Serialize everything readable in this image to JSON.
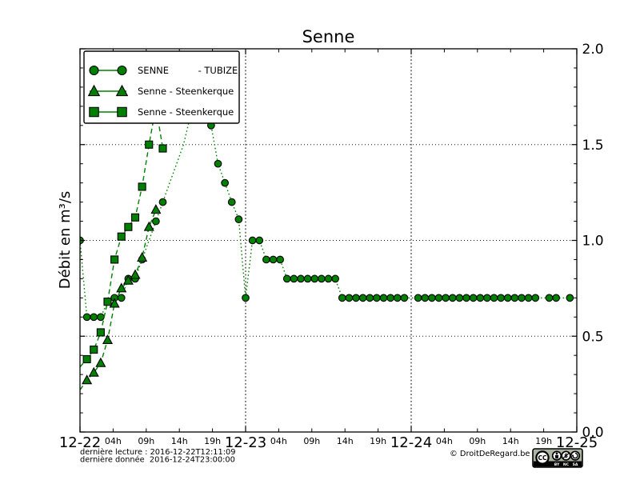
{
  "title": "Senne",
  "axes": {
    "ylabel": "Débit en m³/s",
    "y_range": [
      0.0,
      2.0
    ],
    "y_ticks": {
      "values": [
        0.0,
        0.5,
        1.0,
        1.5,
        2.0
      ],
      "labels": [
        "0.0",
        "0.5",
        "1.0",
        "1.5",
        "2.0"
      ],
      "minor_step": 0.1,
      "labels_side": "right"
    },
    "x_range_hours": [
      0,
      72
    ],
    "x_ticks": {
      "day_labels": [
        "12-22",
        "12-23",
        "12-24",
        "12-25"
      ],
      "hour_labels": [
        "04h",
        "09h",
        "14h",
        "19h"
      ],
      "hour_fractions_of_day": [
        0.2,
        0.4,
        0.6,
        0.8
      ]
    },
    "grid": {
      "horizontal_values": [
        0.5,
        1.0,
        1.5
      ],
      "vertical_hours": [
        24,
        48
      ]
    }
  },
  "legend": {
    "entries": [
      {
        "label": "SENNE          - TUBIZE",
        "marker": "circle",
        "linestyle": "dotted"
      },
      {
        "label": "Senne - Steenkerque",
        "marker": "triangle",
        "linestyle": "dashed"
      },
      {
        "label": "Senne - Steenkerque",
        "marker": "square",
        "linestyle": "dashed"
      }
    ]
  },
  "chart_data": {
    "type": "line",
    "title": "Senne",
    "xlabel": "",
    "ylabel": "Débit en m³/s",
    "x_unit": "hours since 2016-12-22 00:00",
    "xlim_hours": [
      0,
      72
    ],
    "ylim": [
      0.0,
      2.0
    ],
    "grid": true,
    "legend_position": "upper left",
    "series": [
      {
        "name": "SENNE          - TUBIZE",
        "marker": "circle",
        "linestyle": "dotted",
        "color": "#008000",
        "points": [
          [
            0,
            1.0,
            1
          ],
          [
            1,
            0.6,
            1
          ],
          [
            2,
            0.6,
            1
          ],
          [
            3,
            0.6,
            1
          ],
          [
            4,
            0.68,
            1
          ],
          [
            5,
            0.7,
            1
          ],
          [
            6,
            0.7,
            1
          ],
          [
            7,
            0.8,
            1
          ],
          [
            8,
            0.8,
            1
          ],
          [
            9,
            0.9,
            1
          ],
          [
            10,
            1.0,
            0
          ],
          [
            11,
            1.1,
            1
          ],
          [
            12,
            1.2,
            1
          ],
          [
            13,
            1.3,
            0
          ],
          [
            14,
            1.4,
            0
          ],
          [
            15,
            1.5,
            0
          ],
          [
            16,
            1.65,
            0
          ],
          [
            17,
            1.74,
            0
          ],
          [
            18,
            1.7,
            0
          ],
          [
            19,
            1.6,
            1
          ],
          [
            20,
            1.4,
            1
          ],
          [
            21,
            1.3,
            1
          ],
          [
            22,
            1.2,
            1
          ],
          [
            23,
            1.11,
            1
          ],
          [
            24,
            0.7,
            1
          ],
          [
            25,
            1.0,
            1
          ],
          [
            26,
            1.0,
            1
          ],
          [
            27,
            0.9,
            1
          ],
          [
            28,
            0.9,
            1
          ],
          [
            29,
            0.9,
            1
          ],
          [
            30,
            0.8,
            1
          ],
          [
            31,
            0.8,
            1
          ],
          [
            32,
            0.8,
            1
          ],
          [
            33,
            0.8,
            1
          ],
          [
            34,
            0.8,
            1
          ],
          [
            35,
            0.8,
            1
          ],
          [
            36,
            0.8,
            1
          ],
          [
            37,
            0.8,
            1
          ],
          [
            38,
            0.7,
            1
          ],
          [
            39,
            0.7,
            1
          ],
          [
            40,
            0.7,
            1
          ],
          [
            41,
            0.7,
            1
          ],
          [
            42,
            0.7,
            1
          ],
          [
            43,
            0.7,
            1
          ],
          [
            44,
            0.7,
            1
          ],
          [
            45,
            0.7,
            1
          ],
          [
            46,
            0.7,
            1
          ],
          [
            47,
            0.7,
            1
          ],
          [
            48,
            0.7,
            0
          ],
          [
            49,
            0.7,
            1
          ],
          [
            50,
            0.7,
            1
          ],
          [
            51,
            0.7,
            1
          ],
          [
            52,
            0.7,
            1
          ],
          [
            53,
            0.7,
            1
          ],
          [
            54,
            0.7,
            1
          ],
          [
            55,
            0.7,
            1
          ],
          [
            56,
            0.7,
            1
          ],
          [
            57,
            0.7,
            1
          ],
          [
            58,
            0.7,
            1
          ],
          [
            59,
            0.7,
            1
          ],
          [
            60,
            0.7,
            1
          ],
          [
            61,
            0.7,
            1
          ],
          [
            62,
            0.7,
            1
          ],
          [
            63,
            0.7,
            1
          ],
          [
            64,
            0.7,
            1
          ],
          [
            65,
            0.7,
            1
          ],
          [
            66,
            0.7,
            1
          ],
          [
            67,
            0.7,
            0
          ],
          [
            68,
            0.7,
            1
          ],
          [
            69,
            0.7,
            1
          ],
          [
            70,
            0.7,
            0
          ],
          [
            71,
            0.7,
            1
          ]
        ]
      },
      {
        "name": "Senne - Steenkerque",
        "marker": "triangle",
        "linestyle": "dashed",
        "color": "#008000",
        "points": [
          [
            0,
            0.22,
            0
          ],
          [
            1,
            0.27,
            1
          ],
          [
            2,
            0.31,
            1
          ],
          [
            3,
            0.36,
            1
          ],
          [
            4,
            0.48,
            1
          ],
          [
            5,
            0.67,
            1
          ],
          [
            6,
            0.75,
            1
          ],
          [
            7,
            0.79,
            1
          ],
          [
            8,
            0.82,
            1
          ],
          [
            9,
            0.91,
            1
          ],
          [
            10,
            1.07,
            1
          ],
          [
            11,
            1.16,
            1
          ]
        ]
      },
      {
        "name": "Senne - Steenkerque",
        "marker": "square",
        "linestyle": "dashed",
        "color": "#008000",
        "points": [
          [
            0,
            0.34,
            0
          ],
          [
            1,
            0.38,
            1
          ],
          [
            2,
            0.43,
            1
          ],
          [
            3,
            0.52,
            1
          ],
          [
            4,
            0.68,
            1
          ],
          [
            5,
            0.9,
            1
          ],
          [
            6,
            1.02,
            1
          ],
          [
            7,
            1.07,
            1
          ],
          [
            8,
            1.12,
            1
          ],
          [
            9,
            1.28,
            1
          ],
          [
            10,
            1.5,
            1
          ],
          [
            11,
            1.7,
            1
          ],
          [
            12,
            1.48,
            1
          ]
        ]
      }
    ]
  },
  "footer": {
    "line1": "dernière lecture : 2016-12-22T12:11:09",
    "line2": "dernière donnée  2016-12-24T23:00:00",
    "copyright": "© DroitDeRegard.be"
  },
  "badge": {
    "cc": "CC",
    "labels": [
      "BY",
      "NC",
      "SA"
    ]
  },
  "colors": {
    "series": "#008000",
    "text": "#000000",
    "badge_bg": "#aab5a2"
  }
}
